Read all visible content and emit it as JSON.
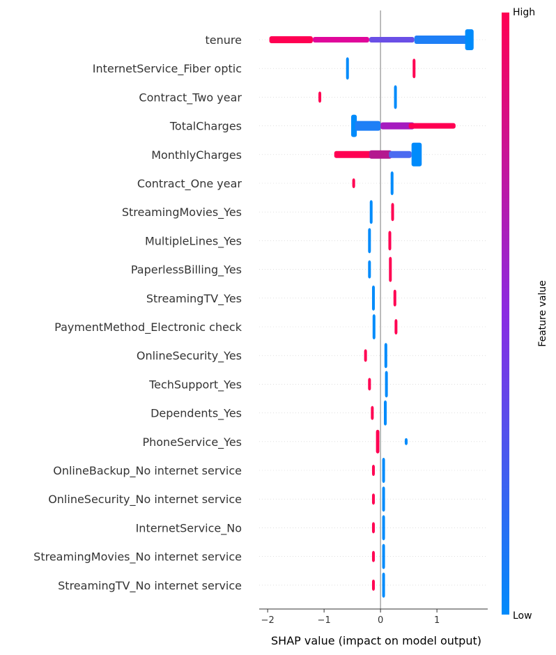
{
  "chart_data": {
    "type": "scatter",
    "subtype": "shap-beeswarm",
    "xlabel": "SHAP value (impact on model output)",
    "xlim": [
      -2.15,
      1.9
    ],
    "xticks": [
      -2,
      -1,
      0,
      1
    ],
    "xtick_labels": [
      "−2",
      "−1",
      "0",
      "1"
    ],
    "vline_x": 0,
    "colorbar": {
      "label": "Feature value",
      "high_label": "High",
      "low_label": "Low",
      "low_color": "#008bfb",
      "high_color": "#ff0052"
    },
    "colors": {
      "low": "#008bfb",
      "high": "#ff0052",
      "zero_line": "#999999",
      "row_grid": "#cccccc"
    },
    "features": [
      {
        "name": "tenure",
        "clusters": [
          {
            "start": -1.97,
            "end": -1.2,
            "color": "#ff0052",
            "height": 10
          },
          {
            "start": -1.2,
            "end": -0.2,
            "color": "#e0079a",
            "height": 8
          },
          {
            "start": -0.2,
            "end": 0.6,
            "color": "#6a4fe6",
            "height": 8
          },
          {
            "start": 0.6,
            "end": 1.55,
            "color": "#1e7ff6",
            "height": 12
          },
          {
            "start": 1.5,
            "end": 1.65,
            "color": "#008bfb",
            "height": 30
          }
        ]
      },
      {
        "name": "InternetService_Fiber optic",
        "clusters": [
          {
            "start": -0.61,
            "end": -0.59,
            "color": "#008bfb",
            "height": 32
          },
          {
            "start": 0.57,
            "end": 0.61,
            "color": "#ff0052",
            "height": 28
          }
        ]
      },
      {
        "name": "Contract_Two year",
        "clusters": [
          {
            "start": -1.1,
            "end": -1.07,
            "color": "#ff0052",
            "height": 16
          },
          {
            "start": 0.24,
            "end": 0.27,
            "color": "#008bfb",
            "height": 34
          }
        ]
      },
      {
        "name": "TotalCharges",
        "clusters": [
          {
            "start": -0.52,
            "end": -0.42,
            "color": "#008bfb",
            "height": 32
          },
          {
            "start": -0.45,
            "end": 0.0,
            "color": "#1e7ff6",
            "height": 14
          },
          {
            "start": 0.0,
            "end": 0.6,
            "color": "#a51bbf",
            "height": 10
          },
          {
            "start": 0.5,
            "end": 1.33,
            "color": "#ff0052",
            "height": 8
          }
        ]
      },
      {
        "name": "MonthlyCharges",
        "clusters": [
          {
            "start": -0.82,
            "end": -0.15,
            "color": "#ff0052",
            "height": 10
          },
          {
            "start": -0.2,
            "end": 0.2,
            "color": "#b4188f",
            "height": 12
          },
          {
            "start": 0.15,
            "end": 0.55,
            "color": "#4b6af0",
            "height": 10
          },
          {
            "start": 0.55,
            "end": 0.73,
            "color": "#008bfb",
            "height": 34
          }
        ]
      },
      {
        "name": "Contract_One year",
        "clusters": [
          {
            "start": -0.5,
            "end": -0.47,
            "color": "#ff0052",
            "height": 14
          },
          {
            "start": 0.18,
            "end": 0.23,
            "color": "#008bfb",
            "height": 34
          }
        ]
      },
      {
        "name": "StreamingMovies_Yes",
        "clusters": [
          {
            "start": -0.19,
            "end": -0.16,
            "color": "#008bfb",
            "height": 34
          },
          {
            "start": 0.19,
            "end": 0.23,
            "color": "#ff0052",
            "height": 26
          }
        ]
      },
      {
        "name": "MultipleLines_Yes",
        "clusters": [
          {
            "start": -0.22,
            "end": -0.18,
            "color": "#008bfb",
            "height": 36
          },
          {
            "start": 0.14,
            "end": 0.19,
            "color": "#ff0052",
            "height": 28
          }
        ]
      },
      {
        "name": "PaperlessBilling_Yes",
        "clusters": [
          {
            "start": -0.22,
            "end": -0.18,
            "color": "#008bfb",
            "height": 26
          },
          {
            "start": 0.15,
            "end": 0.19,
            "color": "#ff0052",
            "height": 36
          }
        ]
      },
      {
        "name": "StreamingTV_Yes",
        "clusters": [
          {
            "start": -0.15,
            "end": -0.11,
            "color": "#008bfb",
            "height": 36
          },
          {
            "start": 0.23,
            "end": 0.27,
            "color": "#ff0052",
            "height": 24
          }
        ]
      },
      {
        "name": "PaymentMethod_Electronic check",
        "clusters": [
          {
            "start": -0.14,
            "end": -0.1,
            "color": "#008bfb",
            "height": 36
          },
          {
            "start": 0.25,
            "end": 0.29,
            "color": "#ff0052",
            "height": 22
          }
        ]
      },
      {
        "name": "OnlineSecurity_Yes",
        "clusters": [
          {
            "start": -0.29,
            "end": -0.26,
            "color": "#ff0052",
            "height": 18
          },
          {
            "start": 0.07,
            "end": 0.11,
            "color": "#008bfb",
            "height": 36
          }
        ]
      },
      {
        "name": "TechSupport_Yes",
        "clusters": [
          {
            "start": -0.22,
            "end": -0.17,
            "color": "#ff0052",
            "height": 18
          },
          {
            "start": 0.08,
            "end": 0.12,
            "color": "#008bfb",
            "height": 38
          }
        ]
      },
      {
        "name": "Dependents_Yes",
        "clusters": [
          {
            "start": -0.17,
            "end": -0.13,
            "color": "#ff0052",
            "height": 20
          },
          {
            "start": 0.06,
            "end": 0.11,
            "color": "#008bfb",
            "height": 36
          }
        ]
      },
      {
        "name": "PhoneService_Yes",
        "clusters": [
          {
            "start": -0.08,
            "end": -0.02,
            "color": "#ff0052",
            "height": 34
          },
          {
            "start": 0.43,
            "end": 0.48,
            "color": "#008bfb",
            "height": 10
          }
        ]
      },
      {
        "name": "OnlineBackup_No internet service",
        "clusters": [
          {
            "start": -0.15,
            "end": -0.12,
            "color": "#ff0052",
            "height": 16
          },
          {
            "start": 0.03,
            "end": 0.07,
            "color": "#008bfb",
            "height": 36
          }
        ]
      },
      {
        "name": "OnlineSecurity_No internet service",
        "clusters": [
          {
            "start": -0.15,
            "end": -0.12,
            "color": "#ff0052",
            "height": 16
          },
          {
            "start": 0.03,
            "end": 0.07,
            "color": "#008bfb",
            "height": 36
          }
        ]
      },
      {
        "name": "InternetService_No",
        "clusters": [
          {
            "start": -0.15,
            "end": -0.12,
            "color": "#ff0052",
            "height": 16
          },
          {
            "start": 0.03,
            "end": 0.07,
            "color": "#008bfb",
            "height": 36
          }
        ]
      },
      {
        "name": "StreamingMovies_No internet service",
        "clusters": [
          {
            "start": -0.15,
            "end": -0.12,
            "color": "#ff0052",
            "height": 16
          },
          {
            "start": 0.03,
            "end": 0.07,
            "color": "#008bfb",
            "height": 36
          }
        ]
      },
      {
        "name": "StreamingTV_No internet service",
        "clusters": [
          {
            "start": -0.15,
            "end": -0.12,
            "color": "#ff0052",
            "height": 16
          },
          {
            "start": 0.03,
            "end": 0.07,
            "color": "#008bfb",
            "height": 36
          }
        ]
      }
    ]
  }
}
